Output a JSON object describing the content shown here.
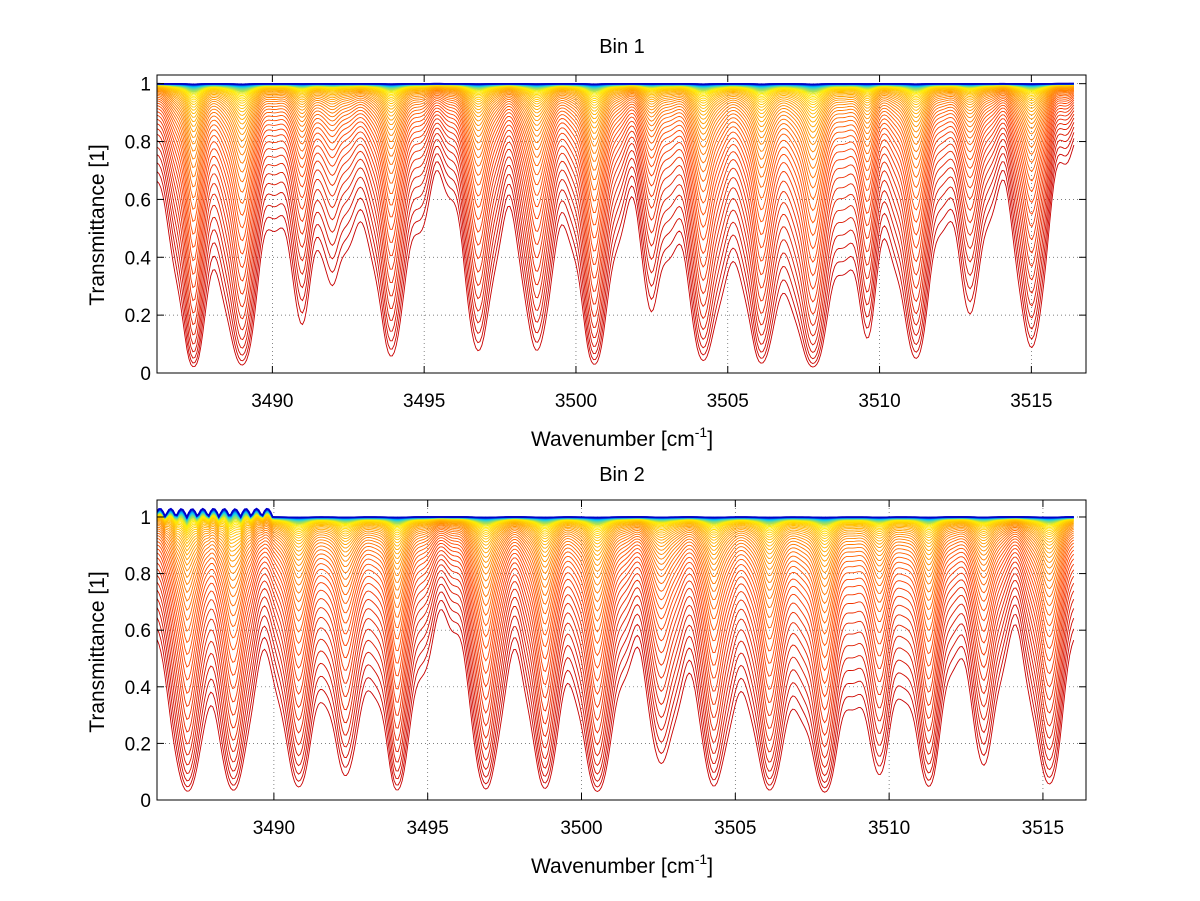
{
  "chart_data": [
    {
      "type": "line",
      "title": "Bin 1",
      "xlabel": "Wavenumber [cm",
      "xlabel_sup": "-1",
      "xlabel_end": "]",
      "ylabel": "Transmittance [1]",
      "xlim": [
        3486.2,
        3516.8
      ],
      "ylim": [
        0,
        1.03
      ],
      "xticks": [
        "3490",
        "3495",
        "3500",
        "3505",
        "3510",
        "3515"
      ],
      "yticks": [
        "0",
        "0.2",
        "0.4",
        "0.6",
        "0.8",
        "1"
      ],
      "grid": true,
      "line_count": 60,
      "colors": [
        "#0000c8",
        "#00c8ff",
        "#ffee00",
        "#ff9900",
        "#ff4400",
        "#c80000"
      ],
      "absorption_lines": [
        {
          "center": 3487.4,
          "depth": 1.0
        },
        {
          "center": 3489.0,
          "depth": 0.9
        },
        {
          "center": 3491.0,
          "depth": 0.35
        },
        {
          "center": 3492.0,
          "depth": 0.25
        },
        {
          "center": 3493.9,
          "depth": 0.75
        },
        {
          "center": 3496.8,
          "depth": 0.6
        },
        {
          "center": 3498.7,
          "depth": 0.6
        },
        {
          "center": 3500.6,
          "depth": 0.85
        },
        {
          "center": 3502.5,
          "depth": 0.3
        },
        {
          "center": 3504.2,
          "depth": 0.8
        },
        {
          "center": 3506.1,
          "depth": 0.85
        },
        {
          "center": 3507.8,
          "depth": 1.0
        },
        {
          "center": 3509.6,
          "depth": 0.45
        },
        {
          "center": 3511.2,
          "depth": 0.7
        },
        {
          "center": 3513.0,
          "depth": 0.3
        },
        {
          "center": 3515.0,
          "depth": 0.6
        }
      ]
    },
    {
      "type": "line",
      "title": "Bin 2",
      "xlabel": "Wavenumber [cm",
      "xlabel_sup": "-1",
      "xlabel_end": "]",
      "ylabel": "Transmittance [1]",
      "xlim": [
        3486.2,
        3516.4
      ],
      "ylim": [
        0,
        1.06
      ],
      "xticks": [
        "3490",
        "3495",
        "3500",
        "3505",
        "3510",
        "3515"
      ],
      "yticks": [
        "0",
        "0.2",
        "0.4",
        "0.6",
        "0.8",
        "1"
      ],
      "grid": true,
      "line_count": 60,
      "colors": [
        "#0000c8",
        "#00c8ff",
        "#ffee00",
        "#ff9900",
        "#ff4400",
        "#c80000"
      ],
      "absorption_lines": [
        {
          "center": 3487.2,
          "depth": 0.9
        },
        {
          "center": 3488.7,
          "depth": 0.8
        },
        {
          "center": 3490.8,
          "depth": 0.7
        },
        {
          "center": 3492.3,
          "depth": 0.55
        },
        {
          "center": 3494.0,
          "depth": 0.85
        },
        {
          "center": 3496.9,
          "depth": 0.8
        },
        {
          "center": 3498.8,
          "depth": 0.75
        },
        {
          "center": 3500.5,
          "depth": 0.85
        },
        {
          "center": 3502.6,
          "depth": 0.45
        },
        {
          "center": 3504.3,
          "depth": 0.75
        },
        {
          "center": 3506.1,
          "depth": 0.85
        },
        {
          "center": 3507.9,
          "depth": 0.9
        },
        {
          "center": 3509.7,
          "depth": 0.55
        },
        {
          "center": 3511.3,
          "depth": 0.7
        },
        {
          "center": 3513.1,
          "depth": 0.45
        },
        {
          "center": 3515.2,
          "depth": 0.7
        }
      ]
    }
  ]
}
